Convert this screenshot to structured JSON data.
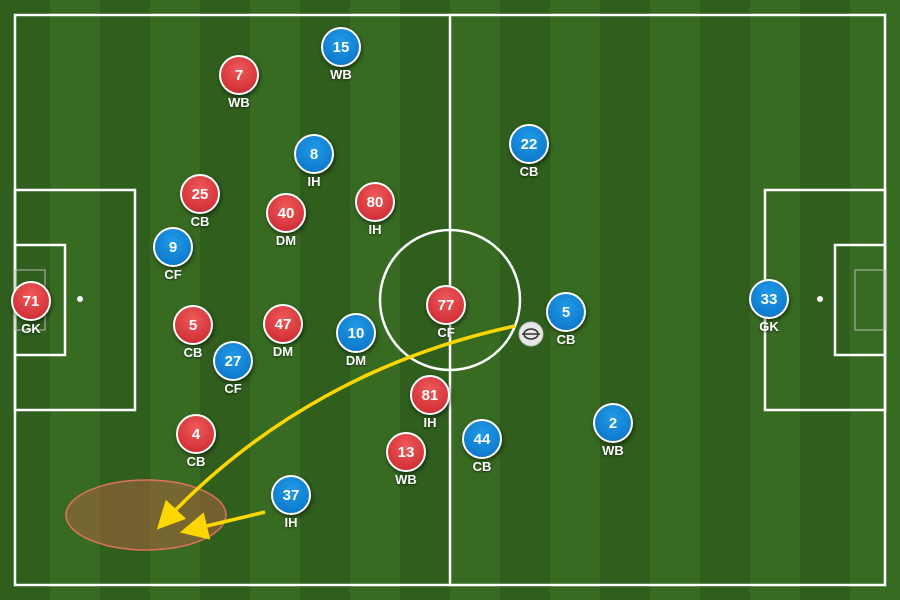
{
  "colors": {
    "red_team": "#d0303a",
    "blue_team": "#0a80d8",
    "pass_arrow": "#ffd700",
    "zone_fill": "#a0643c",
    "zone_stroke": "#e07060",
    "pitch_dark": "#2d5a1b",
    "pitch_light": "#3a6e24",
    "lines": "#ffffff"
  },
  "ball": {
    "icon": "football-icon"
  },
  "players": [
    {
      "team": "red",
      "number": "7",
      "role": "WB"
    },
    {
      "team": "red",
      "number": "25",
      "role": "CB"
    },
    {
      "team": "red",
      "number": "40",
      "role": "DM"
    },
    {
      "team": "red",
      "number": "80",
      "role": "IH"
    },
    {
      "team": "red",
      "number": "71",
      "role": "GK"
    },
    {
      "team": "red",
      "number": "5",
      "role": "CB"
    },
    {
      "team": "red",
      "number": "47",
      "role": "DM"
    },
    {
      "team": "red",
      "number": "77",
      "role": "CF"
    },
    {
      "team": "red",
      "number": "81",
      "role": "IH"
    },
    {
      "team": "red",
      "number": "4",
      "role": "CB"
    },
    {
      "team": "red",
      "number": "13",
      "role": "WB"
    },
    {
      "team": "blue",
      "number": "15",
      "role": "WB"
    },
    {
      "team": "blue",
      "number": "8",
      "role": "IH"
    },
    {
      "team": "blue",
      "number": "22",
      "role": "CB"
    },
    {
      "team": "blue",
      "number": "9",
      "role": "CF"
    },
    {
      "team": "blue",
      "number": "10",
      "role": "DM"
    },
    {
      "team": "blue",
      "number": "27",
      "role": "CF"
    },
    {
      "team": "blue",
      "number": "5",
      "role": "CB"
    },
    {
      "team": "blue",
      "number": "33",
      "role": "GK"
    },
    {
      "team": "blue",
      "number": "2",
      "role": "WB"
    },
    {
      "team": "blue",
      "number": "44",
      "role": "CB"
    },
    {
      "team": "blue",
      "number": "37",
      "role": "IH"
    }
  ]
}
